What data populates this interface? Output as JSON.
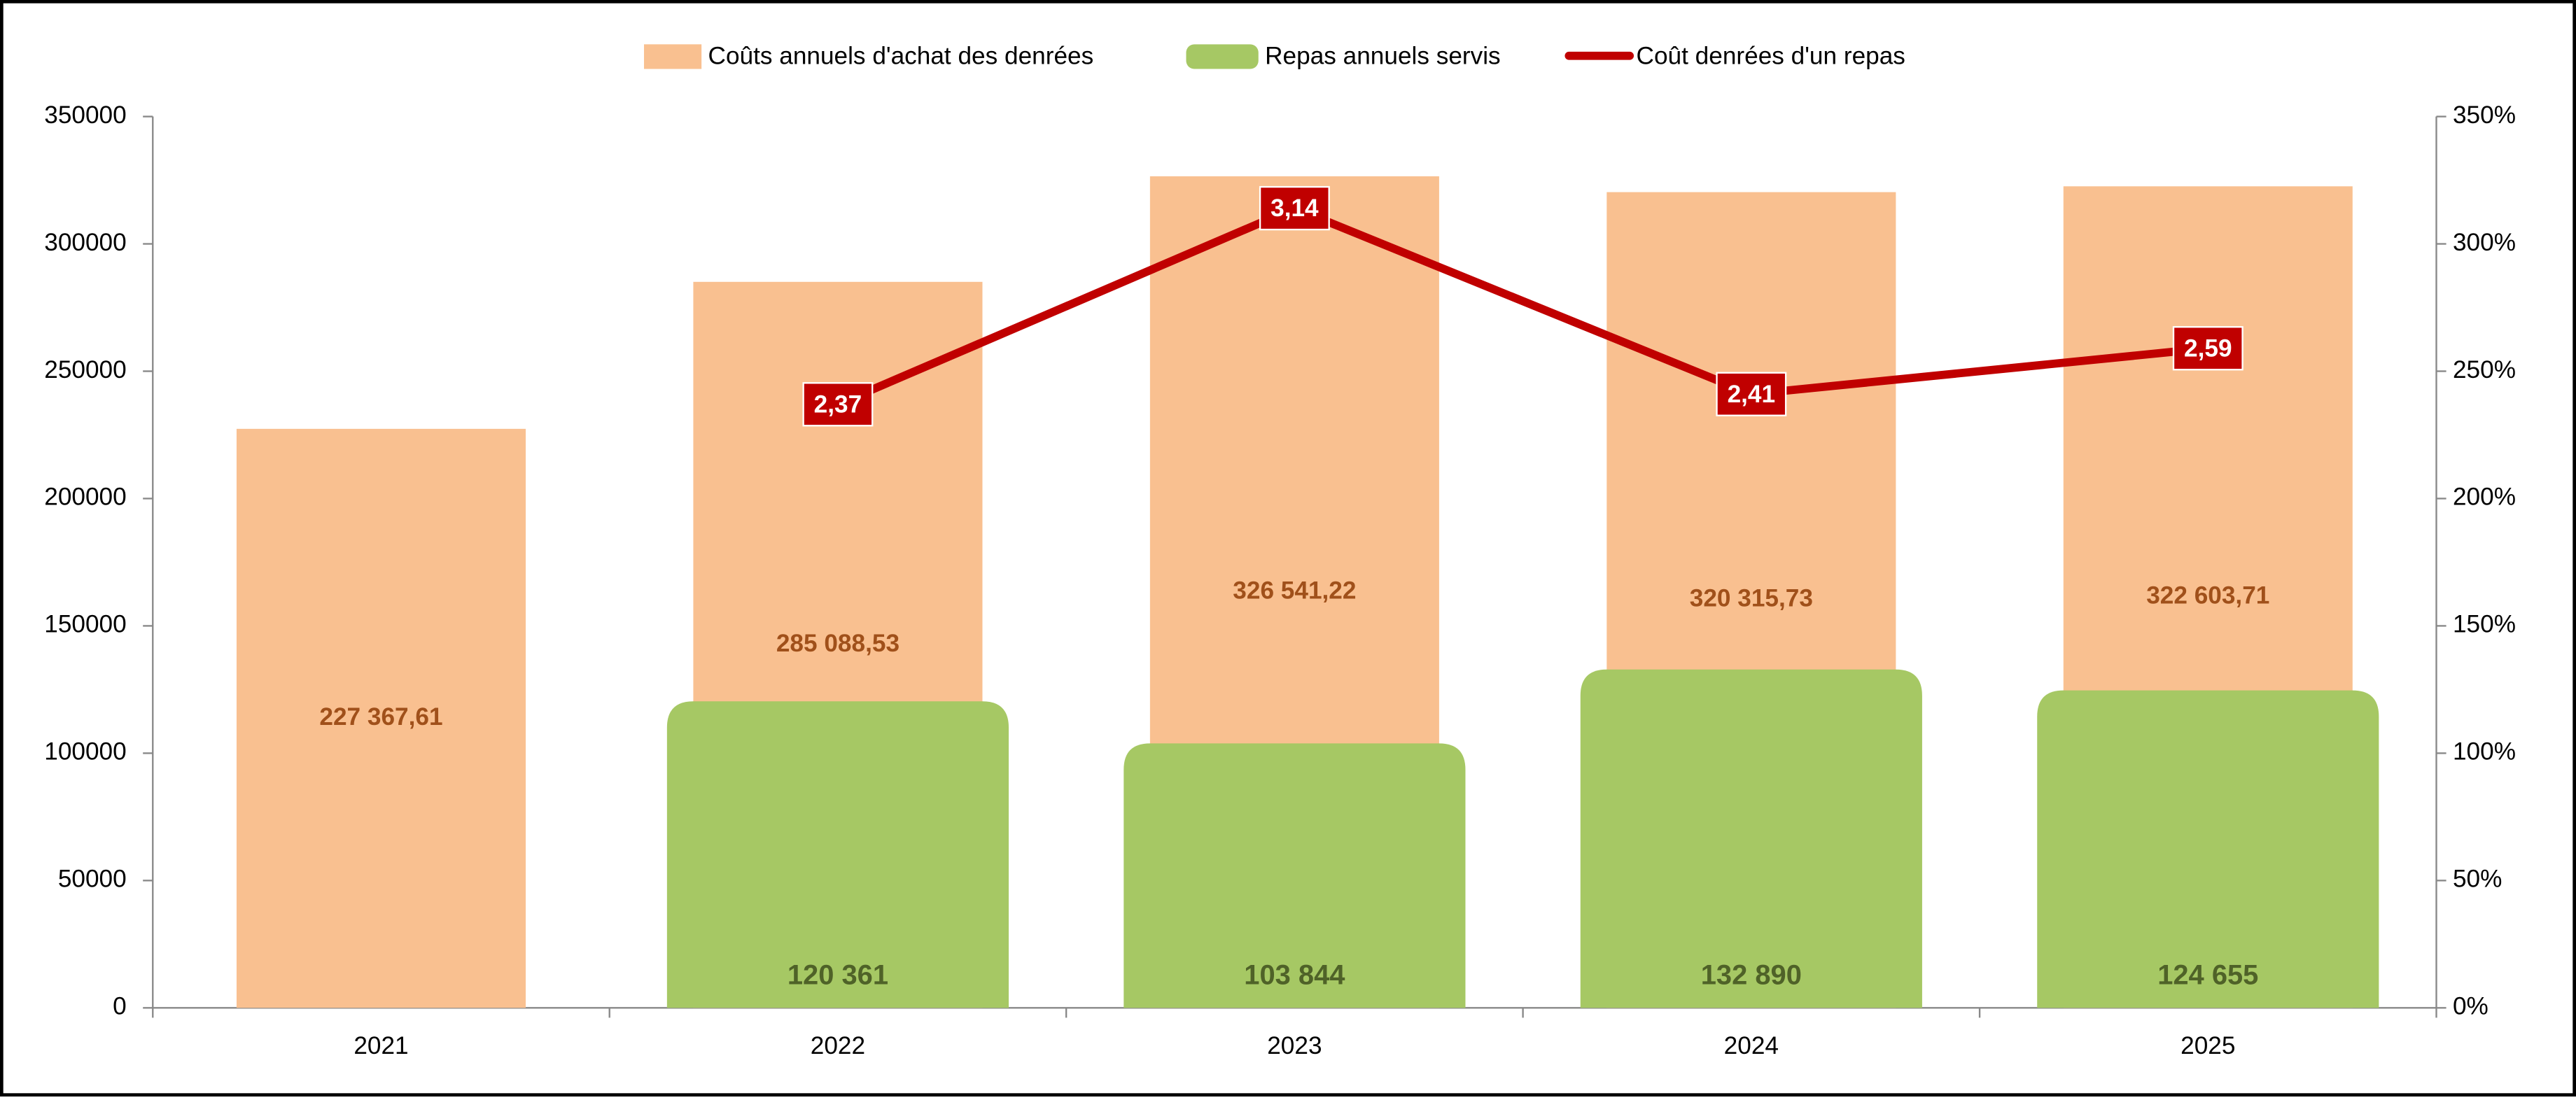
{
  "chart_data": {
    "type": "bar",
    "categories": [
      "2021",
      "2022",
      "2023",
      "2024",
      "2025"
    ],
    "series": [
      {
        "name": "Coûts annuels d'achat des denrées",
        "type": "bar",
        "color": "#f9c090",
        "label_color": "#a0501a",
        "values": [
          227367.61,
          285088.53,
          326541.22,
          320315.73,
          322603.71
        ],
        "value_labels": [
          "227 367,61",
          "285 088,53",
          "326 541,22",
          "320 315,73",
          "322 603,71"
        ]
      },
      {
        "name": "Repas annuels servis",
        "type": "bar",
        "color": "#a6c864",
        "label_color": "#4f6228",
        "values": [
          null,
          120361,
          103844,
          132890,
          124655
        ],
        "value_labels": [
          null,
          "120 361",
          "103 844",
          "132 890",
          "124 655"
        ]
      },
      {
        "name": "Coût denrées d'un repas",
        "type": "line",
        "axis": "y2",
        "color": "#c00000",
        "values": [
          null,
          2.37,
          3.14,
          2.41,
          2.59
        ],
        "value_labels": [
          null,
          "2,37",
          "3,14",
          "2,41",
          "2,59"
        ]
      }
    ],
    "ylim": [
      0,
      350000
    ],
    "yticks": [
      0,
      50000,
      100000,
      150000,
      200000,
      250000,
      300000,
      350000
    ],
    "y2lim": [
      0,
      3.5
    ],
    "y2ticks": [
      {
        "value": 0,
        "label": "0%"
      },
      {
        "value": 0.5,
        "label": "50%"
      },
      {
        "value": 1,
        "label": "100%"
      },
      {
        "value": 1.5,
        "label": "150%"
      },
      {
        "value": 2,
        "label": "200%"
      },
      {
        "value": 2.5,
        "label": "250%"
      },
      {
        "value": 3,
        "label": "300%"
      },
      {
        "value": 3.5,
        "label": "350%"
      }
    ],
    "legend": "top"
  }
}
